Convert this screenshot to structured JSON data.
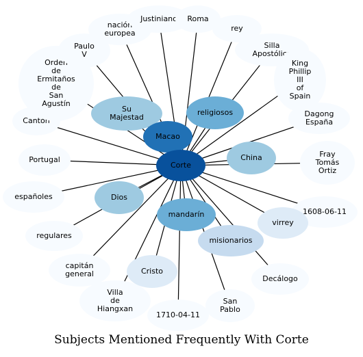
{
  "title": "Subjects Mentioned Frequently With Corte",
  "colors": {
    "center": "#08519c",
    "dark": "#2171b5",
    "medium": "#6baed6",
    "light": "#9ecae1",
    "pale": "#c6dbef",
    "paler": "#deebf7",
    "palest": "#f7fbff",
    "edge": "#000000"
  },
  "center": {
    "label": "Corte",
    "tone": "center"
  },
  "nodes": [
    {
      "label": "Macao",
      "tone": "dark"
    },
    {
      "label": "religiosos",
      "tone": "medium"
    },
    {
      "label": "Su\nMajestad",
      "tone": "light"
    },
    {
      "label": "China",
      "tone": "light"
    },
    {
      "label": "Dios",
      "tone": "light"
    },
    {
      "label": "mandarín",
      "tone": "medium"
    },
    {
      "label": "misionarios",
      "tone": "pale"
    },
    {
      "label": "virrey",
      "tone": "paler"
    },
    {
      "label": "Cristo",
      "tone": "paler"
    },
    {
      "label": "nación\neuropea",
      "tone": "palest"
    },
    {
      "label": "Justiniano",
      "tone": "palest"
    },
    {
      "label": "Roma",
      "tone": "palest"
    },
    {
      "label": "rey",
      "tone": "palest"
    },
    {
      "label": "Silla\nApostólica",
      "tone": "palest"
    },
    {
      "label": "King\nPhillip\nIII\nof\nSpain",
      "tone": "palest"
    },
    {
      "label": "Dagong\nEspaña",
      "tone": "palest"
    },
    {
      "label": "Fray\nTomás\nOrtiz",
      "tone": "palest"
    },
    {
      "label": "1608-06-11",
      "tone": "palest"
    },
    {
      "label": "Decálogo",
      "tone": "palest"
    },
    {
      "label": "San\nPablo",
      "tone": "palest"
    },
    {
      "label": "1710-04-11",
      "tone": "palest"
    },
    {
      "label": "Villa\nde\nHiangxan",
      "tone": "palest"
    },
    {
      "label": "capitán\ngeneral",
      "tone": "palest"
    },
    {
      "label": "regulares",
      "tone": "palest"
    },
    {
      "label": "españoles",
      "tone": "palest"
    },
    {
      "label": "Portugal",
      "tone": "palest"
    },
    {
      "label": "Cantón",
      "tone": "palest"
    },
    {
      "label": "Orden\nde\nErmitaños\nde\nSan\nAgustín",
      "tone": "palest"
    },
    {
      "label": "Paulo\nV",
      "tone": "palest"
    }
  ]
}
